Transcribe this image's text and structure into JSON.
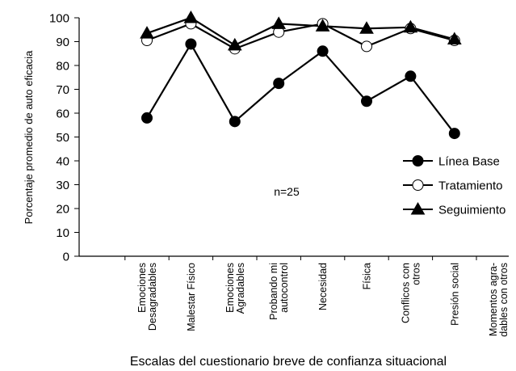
{
  "chart_data": {
    "type": "line",
    "title": "",
    "xlabel": "Escalas del cuestionario breve de confianza situacional",
    "ylabel": "Porcentaje promedio de auto eficacia",
    "ylim": [
      0,
      100
    ],
    "yticks": [
      0,
      10,
      20,
      30,
      40,
      50,
      60,
      70,
      80,
      90,
      100
    ],
    "categories": [
      [
        "Emociones",
        "Desagradables"
      ],
      [
        "Malestar Físico"
      ],
      [
        "Emociones",
        "Agradables"
      ],
      [
        "Probando mi",
        "autocontrol"
      ],
      [
        "Necesidad"
      ],
      [
        "Física"
      ],
      [
        "Conflicos con",
        "otros"
      ],
      [
        "Presión social"
      ],
      [
        "Momentos agra-",
        "dables con otros"
      ]
    ],
    "annotation": "n=25",
    "legend_position": "right",
    "grid": false,
    "series": [
      {
        "name": "Línea Base",
        "marker": "filled-circle",
        "values": [
          58,
          89,
          56.5,
          72.5,
          86,
          65,
          75.5,
          51.5,
          null
        ]
      },
      {
        "name": "Tratamiento",
        "marker": "open-circle",
        "values": [
          90.5,
          97.5,
          87,
          94,
          97.5,
          88,
          95.5,
          90.5,
          null
        ]
      },
      {
        "name": "Seguimiento",
        "marker": "filled-triangle",
        "values": [
          93.5,
          100,
          88.5,
          97.5,
          96.5,
          95.5,
          96,
          91,
          null
        ]
      }
    ]
  }
}
